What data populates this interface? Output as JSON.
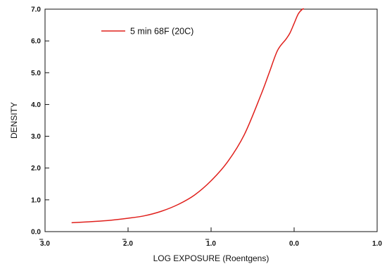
{
  "chart_data": {
    "type": "line",
    "xlabel": "LOG EXPOSURE (Roentgens)",
    "ylabel": "DENSITY",
    "xlim": [
      -3.0,
      1.0
    ],
    "ylim": [
      0.0,
      7.0
    ],
    "x_ticks": [
      -3.0,
      -2.0,
      -1.0,
      0.0,
      1.0
    ],
    "x_tick_labels": [
      "3.0",
      "2.0",
      "1.0",
      "0.0",
      "1.0"
    ],
    "x_tick_bars": [
      true,
      true,
      true,
      false,
      false
    ],
    "y_ticks": [
      0,
      1,
      2,
      3,
      4,
      5,
      6,
      7
    ],
    "y_tick_labels": [
      "0.0",
      "1.0",
      "2.0",
      "3.0",
      "4.0",
      "5.0",
      "6.0",
      "7.0"
    ],
    "grid": false,
    "legend_position": "top-left",
    "series": [
      {
        "name": "5 min 68F (20C)",
        "color": "#e0201c",
        "x": [
          -2.68,
          -2.4,
          -2.2,
          -2.0,
          -1.8,
          -1.6,
          -1.4,
          -1.2,
          -1.0,
          -0.8,
          -0.6,
          -0.4,
          -0.3,
          -0.2,
          -0.1,
          -0.05,
          0.0,
          0.05,
          0.1,
          0.12
        ],
        "y": [
          0.28,
          0.32,
          0.36,
          0.42,
          0.5,
          0.64,
          0.85,
          1.15,
          1.6,
          2.2,
          3.05,
          4.3,
          5.0,
          5.7,
          6.05,
          6.25,
          6.55,
          6.85,
          7.0,
          7.0
        ]
      }
    ]
  }
}
